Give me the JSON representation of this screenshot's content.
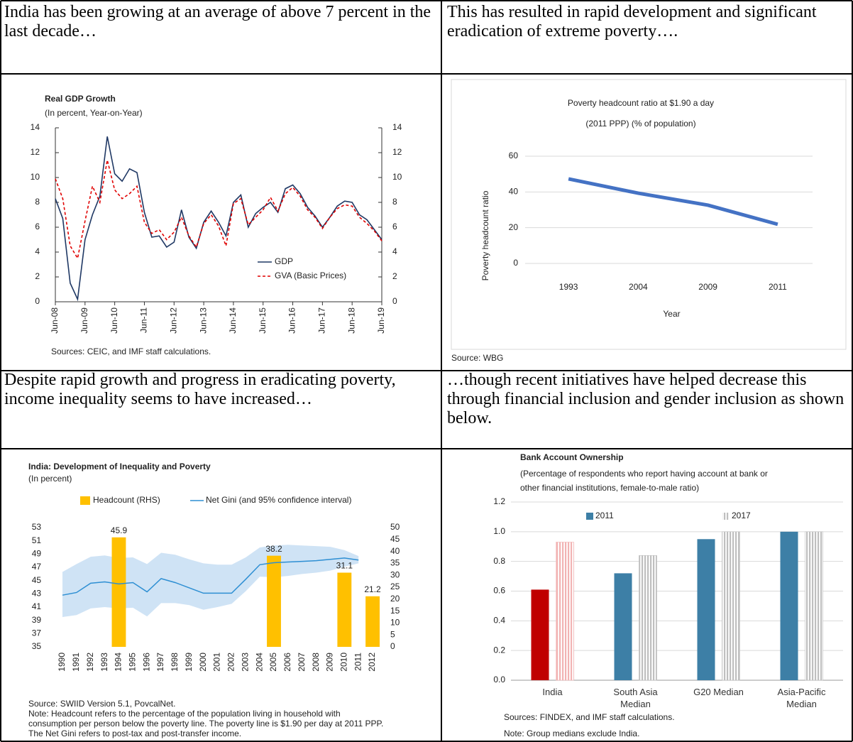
{
  "cells": [
    {
      "text": "India has been growing at an average of above 7 percent in the last decade…"
    },
    {
      "text": "This has resulted in rapid development and significant eradication of extreme poverty…."
    },
    {
      "text": "Despite rapid growth and progress in eradicating poverty, income inequality seems to have increased…"
    },
    {
      "text": "…though recent initiatives have helped decrease this through financial inclusion and gender inclusion as shown below."
    }
  ],
  "chart_data": [
    {
      "type": "line",
      "title": "Real GDP Growth",
      "subtitle": "(In percent, Year-on-Year)",
      "categories": [
        "Jun-08",
        null,
        null,
        null,
        "Jun-09",
        null,
        null,
        null,
        "Jun-10",
        null,
        null,
        null,
        "Jun-11",
        null,
        null,
        null,
        "Jun-12",
        null,
        null,
        null,
        "Jun-13",
        null,
        null,
        null,
        "Jun-14",
        null,
        null,
        null,
        "Jun-15",
        null,
        null,
        null,
        "Jun-16",
        null,
        null,
        null,
        "Jun-17",
        null,
        null,
        null,
        "Jun-18",
        null,
        null,
        null,
        "Jun-19"
      ],
      "series": [
        {
          "name": "GDP",
          "color": "#1f3864",
          "values": [
            8.3,
            6.7,
            1.5,
            0.2,
            5.0,
            7.0,
            8.5,
            13.3,
            10.3,
            9.7,
            10.7,
            10.4,
            7.2,
            5.2,
            5.3,
            4.4,
            4.8,
            7.4,
            5.2,
            4.3,
            6.4,
            7.3,
            6.4,
            5.3,
            8.0,
            8.6,
            6.0,
            7.1,
            7.6,
            8.0,
            7.2,
            9.1,
            9.4,
            8.7,
            7.6,
            6.9,
            6.0,
            6.8,
            7.7,
            8.1,
            8.0,
            7.0,
            6.6,
            5.8,
            5.0
          ]
        },
        {
          "name": "GVA (Basic Prices)",
          "color": "#e00000",
          "dashed": true,
          "values": [
            9.9,
            8.3,
            4.5,
            3.5,
            6.5,
            9.3,
            8.0,
            11.4,
            9.0,
            8.3,
            8.7,
            9.3,
            6.4,
            5.5,
            5.8,
            5.0,
            5.6,
            6.8,
            5.3,
            4.4,
            6.3,
            7.0,
            6.1,
            4.5,
            7.9,
            8.3,
            6.2,
            6.8,
            7.4,
            8.4,
            7.3,
            8.7,
            9.2,
            8.5,
            7.4,
            6.8,
            5.9,
            6.8,
            7.5,
            7.8,
            7.7,
            6.8,
            6.3,
            5.7,
            4.9
          ]
        }
      ],
      "ylim": [
        0,
        14
      ],
      "yticks": [
        0,
        2,
        4,
        6,
        8,
        10,
        12,
        14
      ],
      "y2lim": [
        0,
        14
      ],
      "y2ticks": [
        0,
        2,
        4,
        6,
        8,
        10,
        12,
        14
      ],
      "grid": false,
      "legend": "lower right",
      "source": "Sources: CEIC, and IMF staff calculations."
    },
    {
      "type": "line",
      "title": [
        "Poverty headcount ratio at $1.90 a day",
        "(2011 PPP) (% of population)"
      ],
      "categories": [
        "1993",
        "2004",
        "2009",
        "2011"
      ],
      "series": [
        {
          "color": "#4472c4",
          "values": [
            47.3,
            39.3,
            32.6,
            21.9
          ]
        }
      ],
      "ylim": [
        0,
        60
      ],
      "yticks": [
        0,
        20,
        40,
        60
      ],
      "grid": true,
      "xlabel": "Year",
      "ylabel": "Poverty headcount ratio",
      "source": "Source: WBG"
    },
    {
      "type": "combo",
      "title": "India: Development of Inequality and Poverty",
      "subtitle": "(In percent)",
      "categories": [
        "1990",
        "1991",
        "1992",
        "1993",
        "1994",
        "1995",
        "1996",
        "1997",
        "1998",
        "1999",
        "2000",
        "2001",
        "2002",
        "2003",
        "2004",
        "2005",
        "2006",
        "2007",
        "2008",
        "2009",
        "2010",
        "2011",
        "2012"
      ],
      "series": [
        {
          "name": "Headcount (RHS)",
          "kind": "bar",
          "axis": "y2",
          "color": "#ffc000",
          "values": [
            null,
            null,
            null,
            null,
            45.9,
            null,
            null,
            null,
            null,
            null,
            null,
            null,
            null,
            null,
            null,
            38.2,
            null,
            null,
            null,
            null,
            31.1,
            null,
            21.2
          ]
        },
        {
          "name": "Net Gini (and 95% confidence interval)",
          "kind": "line",
          "color": "#2e8fd3",
          "band_color": "#cfe3f5",
          "values": [
            42.8,
            43.2,
            44.6,
            44.8,
            44.5,
            44.7,
            43.3,
            45.3,
            44.7,
            43.9,
            43.1,
            43.1,
            43.1,
            45.2,
            47.4,
            47.7,
            47.8,
            47.9,
            48.0,
            48.2,
            48.4,
            48.1,
            null
          ],
          "upper": [
            46.3,
            47.5,
            48.6,
            48.8,
            48.4,
            48.5,
            47.5,
            49.2,
            48.9,
            48.2,
            47.6,
            47.4,
            47.4,
            48.5,
            50.0,
            50.3,
            50.4,
            50.3,
            50.2,
            50.1,
            49.6,
            48.7,
            null
          ],
          "lower": [
            39.5,
            39.8,
            40.8,
            41.0,
            40.8,
            40.9,
            39.6,
            41.6,
            41.6,
            41.3,
            40.6,
            41.0,
            41.5,
            43.4,
            45.6,
            45.5,
            45.7,
            46.0,
            46.2,
            46.5,
            47.1,
            47.6,
            null
          ]
        }
      ],
      "ylim": [
        35,
        53
      ],
      "yticks": [
        35,
        37,
        39,
        41,
        43,
        45,
        47,
        49,
        51,
        53
      ],
      "y2lim": [
        0,
        50
      ],
      "y2ticks": [
        0,
        5,
        10,
        15,
        20,
        25,
        30,
        35,
        40,
        45,
        50
      ],
      "legend": "top",
      "source": "Source: SWIID Version 5.1, PovcalNet.",
      "note": [
        "Note: Headcount refers to the percentage of the population living in household with",
        "consumption per person below the poverty line. The poverty line is $1.90 per day at 2011 PPP.",
        "The Net Gini refers to post-tax and post-transfer income."
      ]
    },
    {
      "type": "bar",
      "title": "Bank Account Ownership",
      "subtitle": [
        "(Percentage of respondents who report having account at bank or",
        "other financial institutions, female-to-male ratio)"
      ],
      "categories": [
        "India",
        "South Asia Median",
        "G20 Median",
        "Asia-Pacific Median"
      ],
      "series": [
        {
          "name": "2011",
          "color": "#3d7fa6",
          "colors": [
            "#c00000",
            "#3d7fa6",
            "#3d7fa6",
            "#3d7fa6"
          ],
          "values": [
            0.61,
            0.72,
            0.95,
            1.0
          ]
        },
        {
          "name": "2017",
          "color": "#bfbfbf",
          "colors": [
            "#f2b3b3",
            "#bfbfbf",
            "#bfbfbf",
            "#bfbfbf"
          ],
          "hatch": true,
          "values": [
            0.93,
            0.84,
            1.0,
            1.0
          ]
        }
      ],
      "ylim": [
        0,
        1.2
      ],
      "yticks": [
        {
          "value": 0,
          "label": "0.0"
        },
        0.2,
        0.4,
        0.6,
        0.8,
        {
          "value": 1,
          "label": "1.0"
        },
        1.2
      ],
      "grid": true,
      "legend": "top",
      "source": "Sources: FINDEX, and IMF staff calculations.",
      "note": "Note: Group medians exclude India."
    }
  ]
}
